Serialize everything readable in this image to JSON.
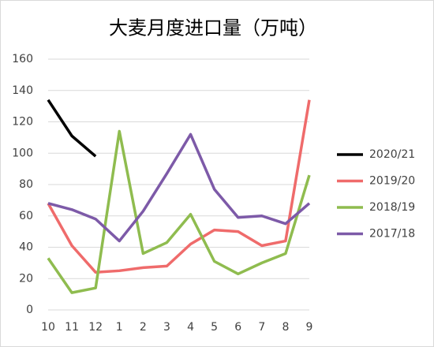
{
  "chart_data": {
    "type": "line",
    "title": "大麦月度进口量（万吨）",
    "categories": [
      "10",
      "11",
      "12",
      "1",
      "2",
      "3",
      "4",
      "5",
      "6",
      "7",
      "8",
      "9"
    ],
    "series": [
      {
        "name": "2020/21",
        "color": "#000000",
        "values": [
          134,
          111,
          98,
          null,
          null,
          null,
          null,
          null,
          null,
          null,
          null,
          null
        ]
      },
      {
        "name": "2019/20",
        "color": "#ef6b6b",
        "values": [
          68,
          41,
          24,
          25,
          27,
          28,
          42,
          51,
          50,
          41,
          44,
          134
        ]
      },
      {
        "name": "2018/19",
        "color": "#8fbc4f",
        "values": [
          33,
          11,
          14,
          114,
          36,
          43,
          61,
          31,
          23,
          30,
          36,
          86
        ]
      },
      {
        "name": "2017/18",
        "color": "#7d5aa8",
        "values": [
          68,
          64,
          58,
          44,
          63,
          87,
          112,
          77,
          59,
          60,
          55,
          68
        ]
      }
    ],
    "ylim": [
      0,
      160
    ],
    "yticks": [
      0,
      20,
      40,
      60,
      80,
      100,
      120,
      140,
      160
    ],
    "grid": true,
    "legend": "right"
  }
}
